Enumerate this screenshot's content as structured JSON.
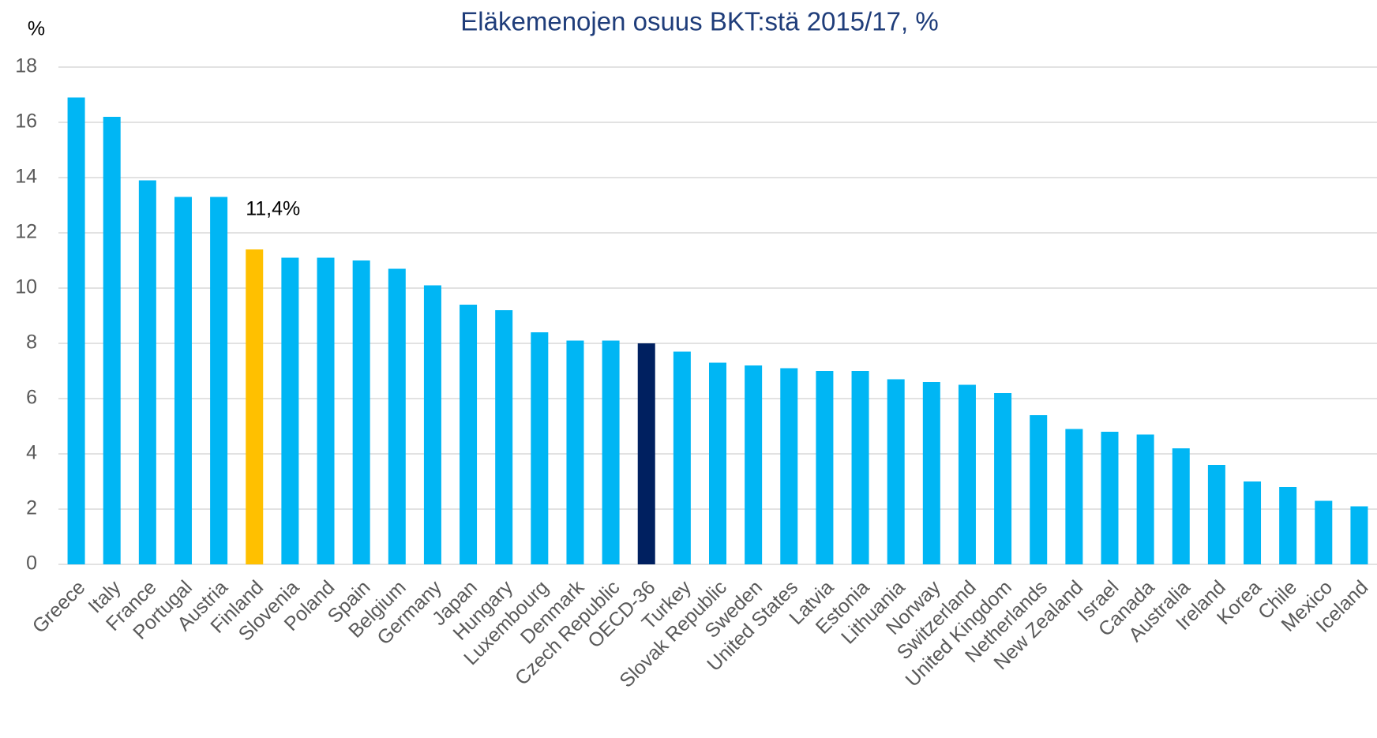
{
  "chart_data": {
    "type": "bar",
    "title": "Eläkemenojen osuus BKT:stä 2015/17, %",
    "y_label": "%",
    "categories": [
      "Greece",
      "Italy",
      "France",
      "Portugal",
      "Austria",
      "Finland",
      "Slovenia",
      "Poland",
      "Spain",
      "Belgium",
      "Germany",
      "Japan",
      "Hungary",
      "Luxembourg",
      "Denmark",
      "Czech Republic",
      "OECD-36",
      "Turkey",
      "Slovak Republic",
      "Sweden",
      "United States",
      "Latvia",
      "Estonia",
      "Lithuania",
      "Norway",
      "Switzerland",
      "United Kingdom",
      "Netherlands",
      "New Zealand",
      "Israel",
      "Canada",
      "Australia",
      "Ireland",
      "Korea",
      "Chile",
      "Mexico",
      "Iceland"
    ],
    "values": [
      16.9,
      16.2,
      13.9,
      13.3,
      13.3,
      11.4,
      11.1,
      11.1,
      11.0,
      10.7,
      10.1,
      9.4,
      9.2,
      8.4,
      8.1,
      8.1,
      8.0,
      7.7,
      7.3,
      7.2,
      7.1,
      7.0,
      7.0,
      6.7,
      6.6,
      6.5,
      6.2,
      5.4,
      4.9,
      4.8,
      4.7,
      4.2,
      3.6,
      3.0,
      2.8,
      2.3,
      2.1
    ],
    "value_labels": [
      null,
      null,
      null,
      null,
      null,
      "11,4%",
      null,
      null,
      null,
      null,
      null,
      null,
      null,
      null,
      null,
      null,
      null,
      null,
      null,
      null,
      null,
      null,
      null,
      null,
      null,
      null,
      null,
      null,
      null,
      null,
      null,
      null,
      null,
      null,
      null,
      null,
      null
    ],
    "color": "#00b6f4",
    "colors": [
      "#00b6f4",
      "#00b6f4",
      "#00b6f4",
      "#00b6f4",
      "#00b6f4",
      "#ffc000",
      "#00b6f4",
      "#00b6f4",
      "#00b6f4",
      "#00b6f4",
      "#00b6f4",
      "#00b6f4",
      "#00b6f4",
      "#00b6f4",
      "#00b6f4",
      "#00b6f4",
      "#002060",
      "#00b6f4",
      "#00b6f4",
      "#00b6f4",
      "#00b6f4",
      "#00b6f4",
      "#00b6f4",
      "#00b6f4",
      "#00b6f4",
      "#00b6f4",
      "#00b6f4",
      "#00b6f4",
      "#00b6f4",
      "#00b6f4",
      "#00b6f4",
      "#00b6f4",
      "#00b6f4",
      "#00b6f4",
      "#00b6f4",
      "#00b6f4",
      "#00b6f4"
    ],
    "ylim": [
      0,
      18
    ],
    "yticks": [
      0,
      2,
      4,
      6,
      8,
      10,
      12,
      14,
      16,
      18
    ],
    "grid": true
  }
}
